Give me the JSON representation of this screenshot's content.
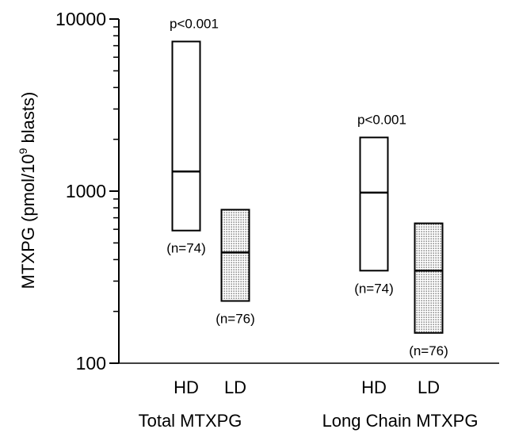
{
  "chart_data": {
    "type": "box",
    "ylabel_main": "MTXPG (pmol/10",
    "ylabel_sup": "9",
    "ylabel_tail": " blasts)",
    "yscale": "log",
    "ylim": [
      100,
      10000
    ],
    "yticks_major": [
      {
        "value": 100,
        "label": "100"
      },
      {
        "value": 1000,
        "label": "1000"
      },
      {
        "value": 10000,
        "label": "10000"
      }
    ],
    "yticks_minor": [
      200,
      300,
      400,
      500,
      600,
      700,
      800,
      900,
      2000,
      3000,
      4000,
      5000,
      6000,
      7000,
      8000,
      9000
    ],
    "groups": [
      {
        "label": "Total MTXPG",
        "p_value": "p<0.001",
        "boxes": [
          {
            "category": "HD",
            "low": 590,
            "median": 1300,
            "high": 7400,
            "n_label": "(n=74)",
            "shaded": false
          },
          {
            "category": "LD",
            "low": 230,
            "median": 440,
            "high": 780,
            "n_label": "(n=76)",
            "shaded": true
          }
        ]
      },
      {
        "label": "Long Chain MTXPG",
        "p_value": "p<0.001",
        "boxes": [
          {
            "category": "HD",
            "low": 345,
            "median": 980,
            "high": 2050,
            "n_label": "(n=74)",
            "shaded": false
          },
          {
            "category": "LD",
            "low": 150,
            "median": 345,
            "high": 650,
            "n_label": "(n=76)",
            "shaded": true
          }
        ]
      }
    ],
    "grid": false,
    "legend": "none"
  }
}
